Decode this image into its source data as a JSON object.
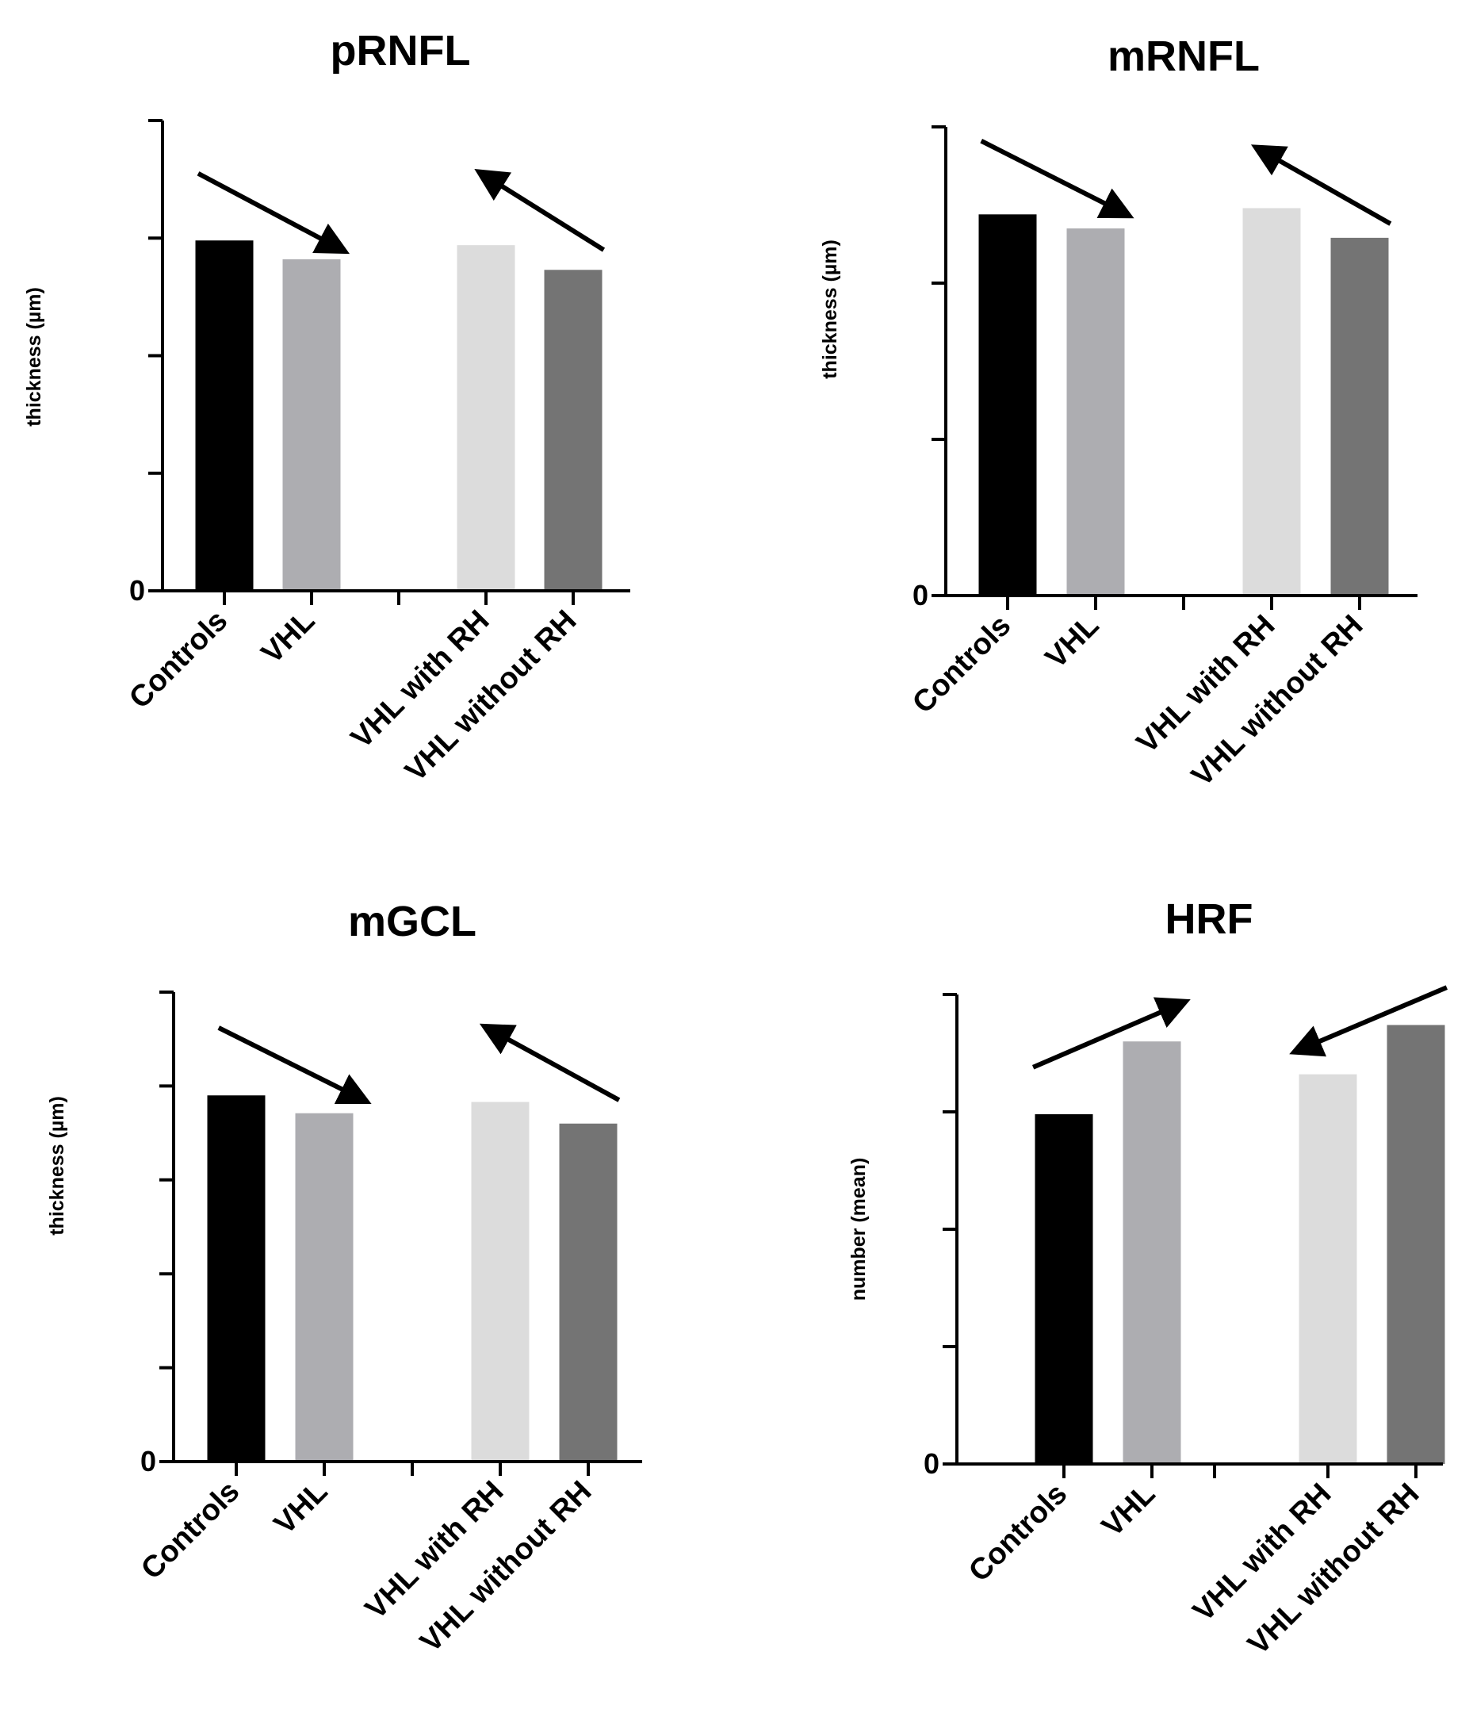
{
  "figure_name": "four-panel bar chart",
  "arrow_color": "#000000",
  "chart_data": [
    {
      "type": "bar",
      "title": "pRNFL",
      "ylabel": "thickness (µm)",
      "xlabel": "",
      "ylim": [
        0,
        4
      ],
      "y_ticks": [
        0,
        1,
        2,
        3,
        4
      ],
      "y_tick_labels": [
        "0",
        "",
        "",
        "",
        ""
      ],
      "categories": [
        "Controls",
        "VHL",
        "",
        "VHL with RH",
        "VHL without RH"
      ],
      "values": [
        2.98,
        2.82,
        null,
        2.94,
        2.73
      ],
      "colors": [
        "#000000",
        "#adadb1",
        null,
        "#dcdcdc",
        "#747474"
      ],
      "arrows": [
        {
          "from": [
            -0.3,
            3.55
          ],
          "to": [
            1.35,
            2.9
          ]
        },
        {
          "from": [
            4.35,
            2.9
          ],
          "to": [
            2.95,
            3.55
          ]
        }
      ]
    },
    {
      "type": "bar",
      "title": "mRNFL",
      "ylabel": "thickness (µm)",
      "xlabel": "",
      "ylim": [
        0,
        3
      ],
      "y_ticks": [
        0,
        1,
        2,
        3
      ],
      "y_tick_labels": [
        "0",
        "",
        "",
        ""
      ],
      "categories": [
        "Controls",
        "VHL",
        "",
        "VHL with RH",
        "VHL without RH"
      ],
      "values": [
        2.44,
        2.35,
        null,
        2.48,
        2.29
      ],
      "colors": [
        "#000000",
        "#adadb1",
        null,
        "#dcdcdc",
        "#747474"
      ],
      "arrows": [
        {
          "from": [
            -0.3,
            2.91
          ],
          "to": [
            1.35,
            2.44
          ]
        },
        {
          "from": [
            4.35,
            2.38
          ],
          "to": [
            2.85,
            2.86
          ]
        }
      ]
    },
    {
      "type": "bar",
      "title": "mGCL",
      "ylabel": "thickness (µm)",
      "xlabel": "",
      "ylim": [
        0,
        5
      ],
      "y_ticks": [
        0,
        1,
        2,
        3,
        4,
        5
      ],
      "y_tick_labels": [
        "0",
        "",
        "",
        "",
        "",
        ""
      ],
      "categories": [
        "Controls",
        "VHL",
        "",
        "VHL with RH",
        "VHL without RH"
      ],
      "values": [
        3.9,
        3.71,
        null,
        3.83,
        3.6
      ],
      "colors": [
        "#000000",
        "#adadb1",
        null,
        "#dcdcdc",
        "#747474"
      ],
      "arrows": [
        {
          "from": [
            -0.2,
            4.62
          ],
          "to": [
            1.45,
            3.85
          ]
        },
        {
          "from": [
            4.35,
            3.85
          ],
          "to": [
            2.85,
            4.62
          ]
        }
      ]
    },
    {
      "type": "bar",
      "title": "HRF",
      "ylabel": "number (mean)",
      "xlabel": "",
      "ylim": [
        0,
        4
      ],
      "y_ticks": [
        0,
        1,
        2,
        3,
        4
      ],
      "y_tick_labels": [
        "0",
        "",
        "",
        "",
        ""
      ],
      "categories": [
        "Controls",
        "VHL",
        "",
        "VHL with RH",
        "VHL without RH"
      ],
      "values": [
        2.98,
        3.6,
        null,
        3.32,
        3.74
      ],
      "colors": [
        "#000000",
        "#adadb1",
        null,
        "#dcdcdc",
        "#747474"
      ],
      "arrows": [
        {
          "from": [
            -0.35,
            3.38
          ],
          "to": [
            1.35,
            3.93
          ]
        },
        {
          "from": [
            4.35,
            4.06
          ],
          "to": [
            2.65,
            3.52
          ]
        }
      ]
    }
  ]
}
